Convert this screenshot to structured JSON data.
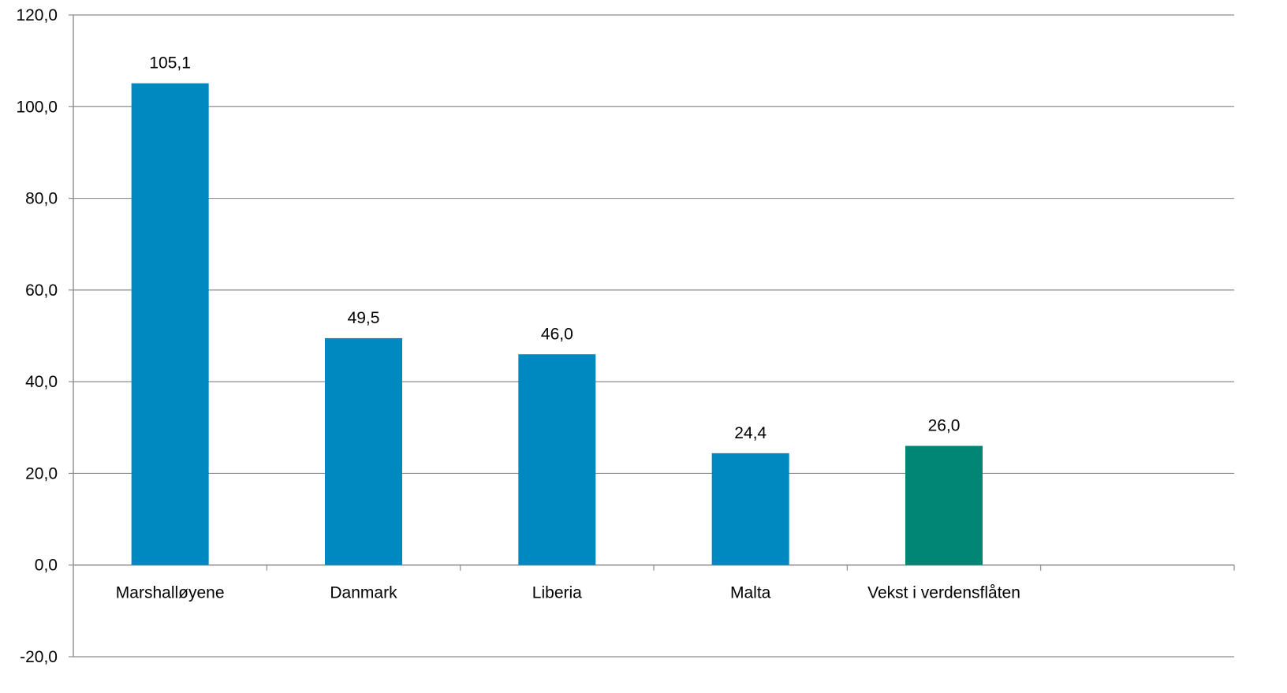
{
  "chart_data": {
    "type": "bar",
    "title": "",
    "xlabel": "",
    "ylabel": "",
    "categories": [
      "Marshalløyene",
      "Danmark",
      "Liberia",
      "Malta",
      "Vekst i verdensflåten"
    ],
    "values": [
      105.1,
      49.5,
      46.0,
      24.4,
      26.0
    ],
    "value_labels": [
      "105,1",
      "49,5",
      "46,0",
      "24,4",
      "26,0"
    ],
    "bar_colors": [
      "#0088c0",
      "#0088c0",
      "#0088c0",
      "#0088c0",
      "#008673"
    ],
    "ylim": [
      -20,
      120
    ],
    "y_ticks": [
      120,
      100,
      80,
      60,
      40,
      20,
      0,
      -20
    ],
    "y_tick_labels": [
      "120,0",
      "100,0",
      "80,0",
      "60,0",
      "40,0",
      "20,0",
      "0,0",
      "-20,0"
    ],
    "category_slots": 6,
    "grid": true,
    "legend": "none"
  }
}
